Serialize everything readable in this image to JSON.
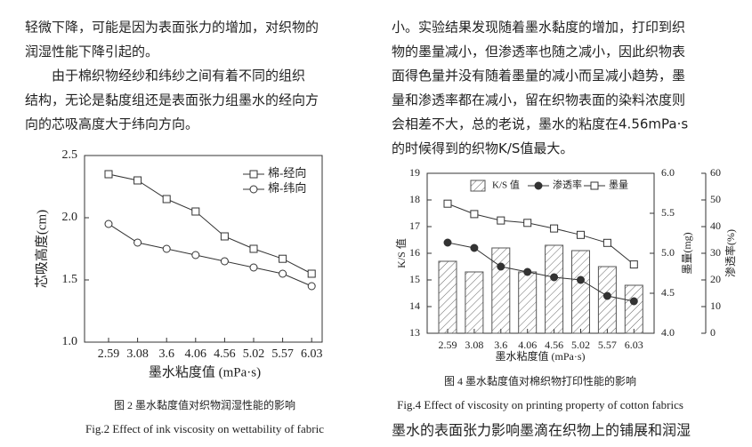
{
  "document": {
    "left_lines": [
      "轻微下降，可能是因为表面张力的增加，对织物的",
      "润湿性能下降引起的。",
      "由于棉织物经纱和纬纱之间有着不同的组织",
      "结构，无论是黏度组还是表面张力组墨水的经向方",
      "向的芯吸高度大于纬向方向。"
    ],
    "right_lines": [
      "小。实验结果发现随着墨水黏度的增加，打印到织",
      "物的墨量减小，但渗透率也随之减小，因此织物表",
      "面得色量并没有随着墨量的减小而呈减小趋势，墨",
      "量和渗透率都在减小，留在织物表面的染料浓度则",
      "会相差不大，总的老说，墨水的粘度在4.56mPa·s",
      "的时候得到的织物K/S值最大。"
    ],
    "bottom_line": "墨水的表面张力影响墨滴在织物上的铺展和润湿"
  },
  "chart_data": [
    {
      "type": "line",
      "xlabel": "墨水粘度值 (mPa·s)",
      "ylabel": "芯吸高度(cm)",
      "caption_cn": "图 2 墨水黏度值对织物润湿性能的影响",
      "caption_en": "Fig.2 Effect of ink viscosity on wettability of fabric",
      "categories": [
        "2.59",
        "3.08",
        "3.6",
        "4.06",
        "4.56",
        "5.02",
        "5.57",
        "6.03"
      ],
      "ylim": [
        1.0,
        2.5
      ],
      "yticks": [
        {
          "value": 1.0,
          "label": "1.0"
        },
        {
          "value": 1.5,
          "label": "1.5"
        },
        {
          "value": 2.0,
          "label": "2.0"
        },
        {
          "value": 2.5,
          "label": "2.5"
        }
      ],
      "series": [
        {
          "name": "棉-经向",
          "type": "line",
          "color": "#333333",
          "marker": "square",
          "filled": false,
          "values": [
            2.35,
            2.3,
            2.15,
            2.05,
            1.85,
            1.75,
            1.67,
            1.55
          ]
        },
        {
          "name": "棉-纬向",
          "type": "line",
          "color": "#333333",
          "marker": "circle",
          "filled": false,
          "values": [
            1.95,
            1.8,
            1.75,
            1.7,
            1.65,
            1.6,
            1.55,
            1.45
          ]
        }
      ]
    },
    {
      "type": "bar",
      "xlabel": "墨水粘度值 (mPa·s)",
      "ylabel": "K/S 值",
      "y2label": "墨量(mg)",
      "y3label": "渗透率(%)",
      "caption_cn": "图 4 墨水黏度值对棉织物打印性能的影响",
      "caption_en": "Fig.4 Effect of viscosity on printing property of cotton fabrics",
      "categories": [
        "2.59",
        "3.08",
        "3.6",
        "4.06",
        "4.56",
        "5.02",
        "5.57",
        "6.03"
      ],
      "ylim": [
        13,
        19
      ],
      "yticks": [
        13,
        14,
        15,
        16,
        17,
        18,
        19
      ],
      "y2lim": [
        4.0,
        6.0
      ],
      "y2ticks": [
        {
          "value": 4.0,
          "label": "4.0"
        },
        {
          "value": 4.5,
          "label": "4.5"
        },
        {
          "value": 5.0,
          "label": "5.0"
        },
        {
          "value": 5.5,
          "label": "5.5"
        },
        {
          "value": 6.0,
          "label": "6.0"
        }
      ],
      "y3lim": [
        0,
        60
      ],
      "y3ticks": [
        0,
        10,
        20,
        30,
        40,
        50,
        60
      ],
      "series": [
        {
          "name": "K/S 值",
          "type": "bar",
          "color": "#555555",
          "values": [
            15.7,
            15.3,
            16.2,
            15.3,
            16.3,
            16.1,
            15.5,
            14.8
          ]
        },
        {
          "name": "渗透率",
          "type": "line",
          "axis": "y3",
          "color": "#333333",
          "marker": "circle",
          "filled": true,
          "values": [
            34,
            32,
            25,
            23,
            21,
            20,
            14,
            12
          ]
        },
        {
          "name": "墨量",
          "type": "line",
          "axis": "y2",
          "color": "#333333",
          "marker": "square",
          "filled": false,
          "values": [
            5.62,
            5.49,
            5.41,
            5.38,
            5.31,
            5.23,
            5.13,
            4.86
          ]
        }
      ]
    }
  ]
}
